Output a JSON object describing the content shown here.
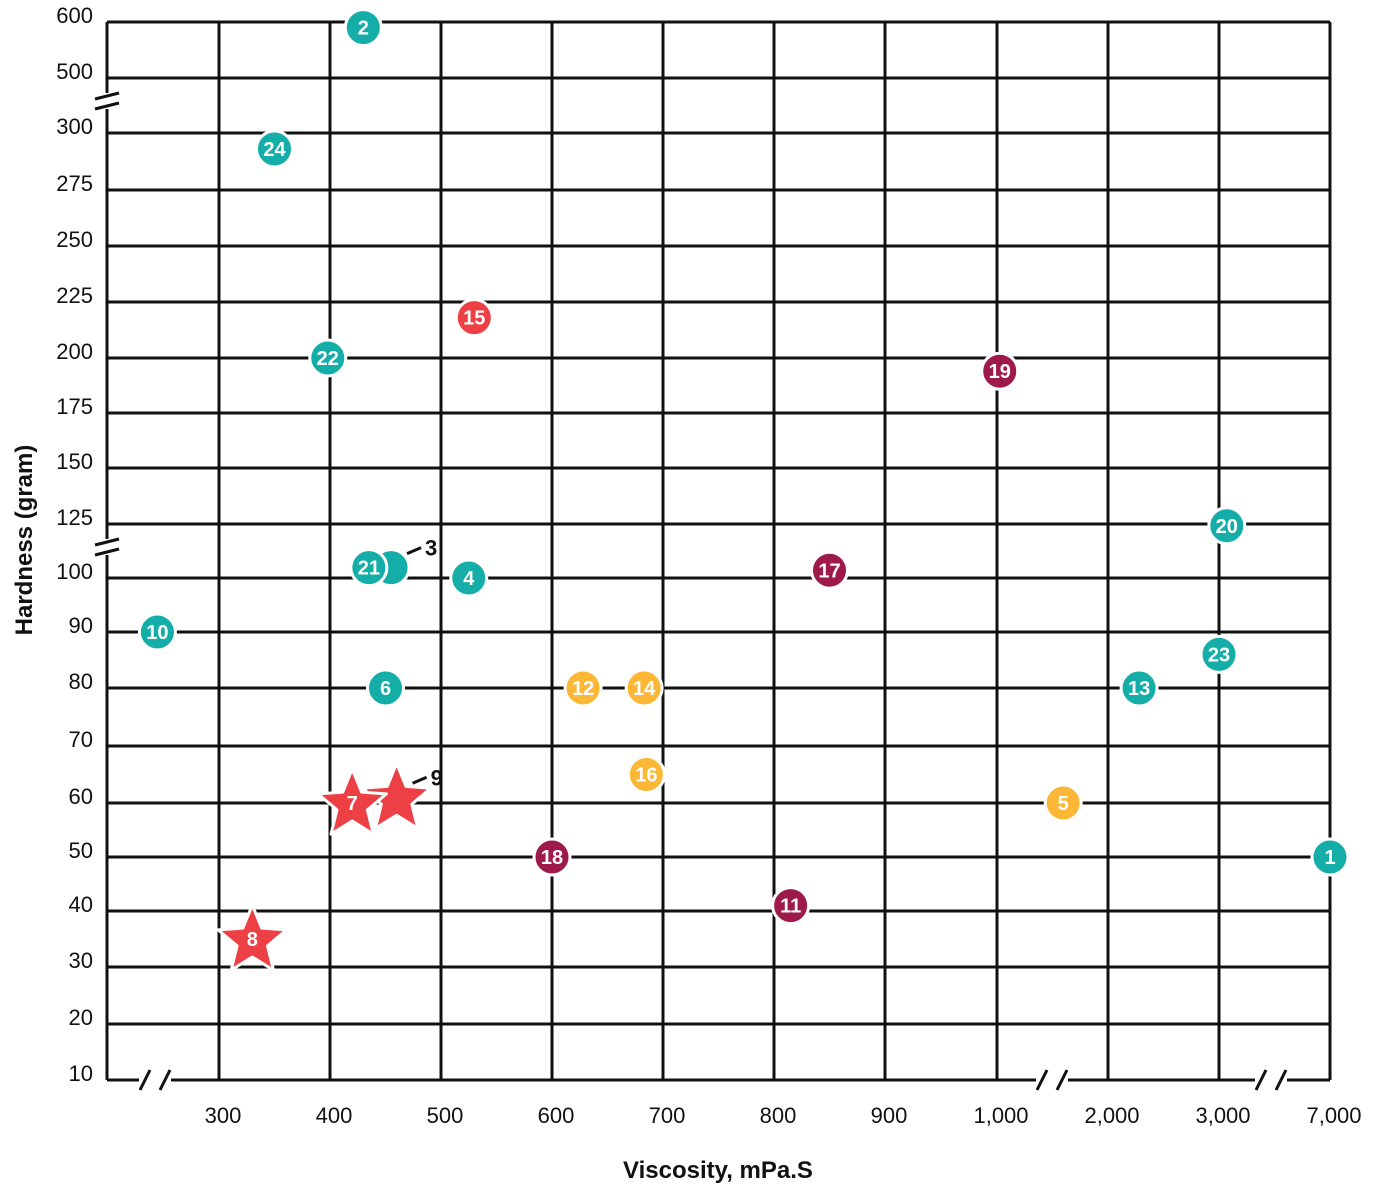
{
  "chart_data": {
    "type": "scatter",
    "xlabel": "Viscosity, mPa.S",
    "ylabel": "Hardness (gram)",
    "x_ticks": [
      "300",
      "400",
      "500",
      "600",
      "700",
      "800",
      "900",
      "1,000",
      "2,000",
      "3,000",
      "7,000"
    ],
    "y_ticks": [
      "10",
      "20",
      "30",
      "40",
      "50",
      "60",
      "70",
      "80",
      "90",
      "100",
      "125",
      "150",
      "175",
      "200",
      "225",
      "250",
      "275",
      "300",
      "500",
      "600"
    ],
    "axis_breaks": {
      "x": [
        "between 200 and 300",
        "between 1,000 and 2,000",
        "between 3,000 and 7,000"
      ],
      "y": [
        "between 100 and 125",
        "between 300 and 500"
      ]
    },
    "grid": true,
    "colors": {
      "teal": "#14ada8",
      "red": "#ed4045",
      "yellow": "#fbb735",
      "maroon": "#9e1a4b",
      "grid": "#111111"
    },
    "points": [
      {
        "label": "1",
        "x": 7000,
        "y": 50,
        "color": "teal",
        "shape": "circle"
      },
      {
        "label": "2",
        "x": 430,
        "y": 590,
        "color": "teal",
        "shape": "circle"
      },
      {
        "label": "3",
        "x": 455,
        "y": 104,
        "color": "teal",
        "shape": "circle",
        "callout": true
      },
      {
        "label": "4",
        "x": 525,
        "y": 100,
        "color": "teal",
        "shape": "circle"
      },
      {
        "label": "5",
        "x": 1600,
        "y": 60,
        "color": "yellow",
        "shape": "circle"
      },
      {
        "label": "6",
        "x": 450,
        "y": 80,
        "color": "teal",
        "shape": "circle"
      },
      {
        "label": "7",
        "x": 420,
        "y": 60,
        "color": "red",
        "shape": "star"
      },
      {
        "label": "8",
        "x": 330,
        "y": 35,
        "color": "red",
        "shape": "star"
      },
      {
        "label": "9",
        "x": 460,
        "y": 61,
        "color": "red",
        "shape": "star",
        "callout": true
      },
      {
        "label": "10",
        "x": 245,
        "y": 90,
        "color": "teal",
        "shape": "circle"
      },
      {
        "label": "11",
        "x": 815,
        "y": 41,
        "color": "maroon",
        "shape": "circle"
      },
      {
        "label": "12",
        "x": 628,
        "y": 80,
        "color": "yellow",
        "shape": "circle"
      },
      {
        "label": "13",
        "x": 2280,
        "y": 80,
        "color": "teal",
        "shape": "circle"
      },
      {
        "label": "14",
        "x": 683,
        "y": 80,
        "color": "yellow",
        "shape": "circle"
      },
      {
        "label": "15",
        "x": 530,
        "y": 218,
        "color": "red",
        "shape": "circle"
      },
      {
        "label": "16",
        "x": 685,
        "y": 65,
        "color": "yellow",
        "shape": "circle"
      },
      {
        "label": "17",
        "x": 850,
        "y": 103,
        "color": "maroon",
        "shape": "circle"
      },
      {
        "label": "18",
        "x": 600,
        "y": 50,
        "color": "maroon",
        "shape": "circle"
      },
      {
        "label": "19",
        "x": 1025,
        "y": 194,
        "color": "maroon",
        "shape": "circle"
      },
      {
        "label": "20",
        "x": 3300,
        "y": 124,
        "color": "teal",
        "shape": "circle"
      },
      {
        "label": "21",
        "x": 435,
        "y": 104,
        "color": "teal",
        "shape": "circle"
      },
      {
        "label": "22",
        "x": 398,
        "y": 200,
        "color": "teal",
        "shape": "circle"
      },
      {
        "label": "23",
        "x": 3000,
        "y": 86,
        "color": "teal",
        "shape": "circle"
      },
      {
        "label": "24",
        "x": 350,
        "y": 293,
        "color": "teal",
        "shape": "circle"
      }
    ]
  }
}
